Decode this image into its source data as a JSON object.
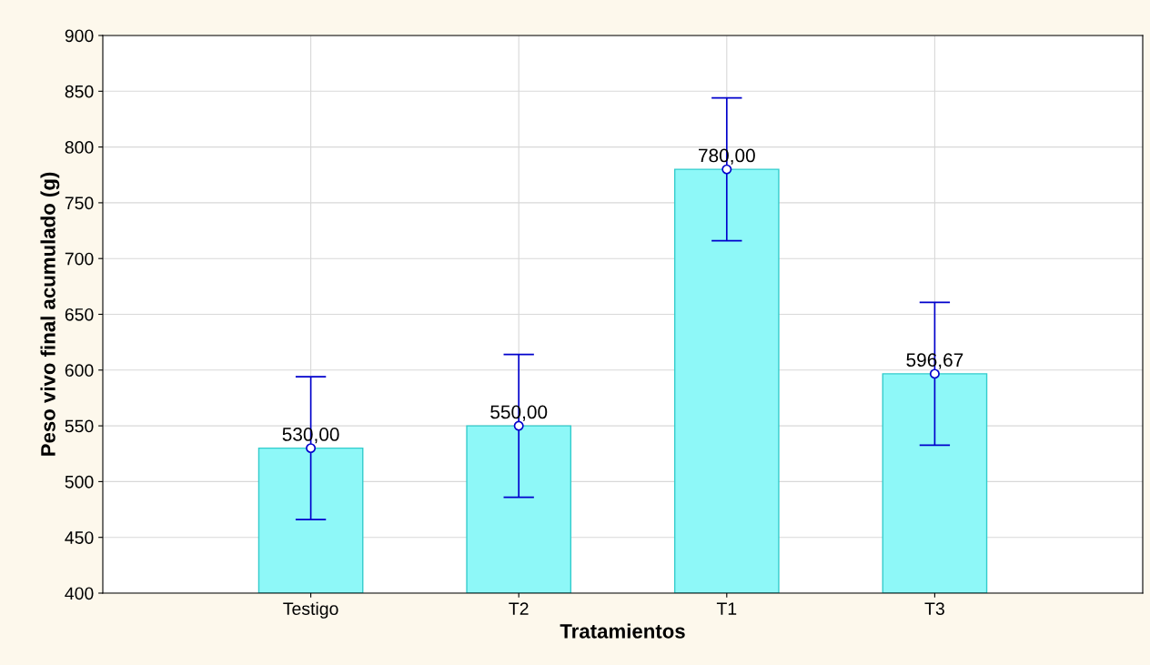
{
  "chart_data": {
    "type": "bar",
    "xlabel": "Tratamientos",
    "ylabel": "Peso vivo final acumulado (g)",
    "categories": [
      "Testigo",
      "T2",
      "T1",
      "T3"
    ],
    "series": [
      {
        "color": "#8ef8f8",
        "values": [
          530,
          550,
          780,
          596.67
        ],
        "errors": [
          64,
          64,
          64,
          64
        ],
        "value_labels": [
          "530,00",
          "550,00",
          "780,00",
          "596,67"
        ]
      },
      {
        "type": "scatter",
        "x": [
          "Testigo",
          "T2",
          "T1",
          "T3"
        ],
        "color": "#0000cc",
        "values": [
          530,
          550,
          780,
          596.67
        ],
        "marker": "circle"
      }
    ],
    "ylim": [
      400,
      900
    ],
    "yticks": [
      400,
      450,
      500,
      550,
      600,
      650,
      700,
      750,
      800,
      850,
      900
    ],
    "grid": true
  }
}
